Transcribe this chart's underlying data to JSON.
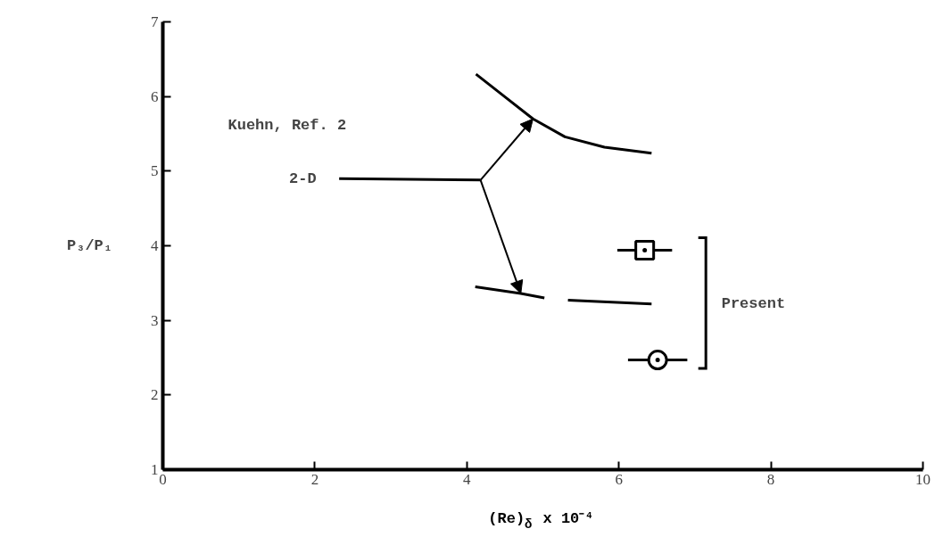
{
  "chart_data": {
    "type": "line",
    "xlabel": "(Re)$_{δ}$ x 10⁻⁴",
    "ylabel": "P₃/P₁",
    "xlim": [
      0,
      10
    ],
    "ylim": [
      1,
      7
    ],
    "xticks": [
      0,
      2,
      4,
      6,
      8,
      10
    ],
    "yticks": [
      1,
      2,
      3,
      4,
      5,
      6,
      7
    ],
    "series": [
      {
        "color": "#000000",
        "x": [
          4.12,
          4.52,
          4.87,
          5.29,
          5.81,
          6.43
        ],
        "values": [
          6.3,
          5.98,
          5.7,
          5.46,
          5.32,
          5.24
        ]
      },
      {
        "color": "#000000",
        "x": [
          4.11,
          4.71,
          5.02,
          5.18,
          5.33,
          6.43
        ],
        "values": [
          3.45,
          3.36,
          3.3,
          null,
          3.27,
          3.22
        ]
      },
      {
        "color": "#000000",
        "x": [
          2.32,
          4.18
        ],
        "values": [
          4.9,
          4.88
        ]
      },
      {
        "type": "scatter",
        "color": "#000000",
        "marker": "square",
        "x": [
          6.34
        ],
        "values": [
          3.94
        ],
        "xerrors": [
          0.36
        ]
      },
      {
        "type": "scatter",
        "color": "#000000",
        "marker": "circle",
        "x": [
          6.51
        ],
        "values": [
          2.47
        ],
        "xerrors": [
          0.39
        ]
      }
    ],
    "annotations": [
      "Kuehn, Ref. 2",
      {
        "text": "2-D",
        "x": 2.32,
        "y": 4.9
      },
      "Present"
    ]
  }
}
